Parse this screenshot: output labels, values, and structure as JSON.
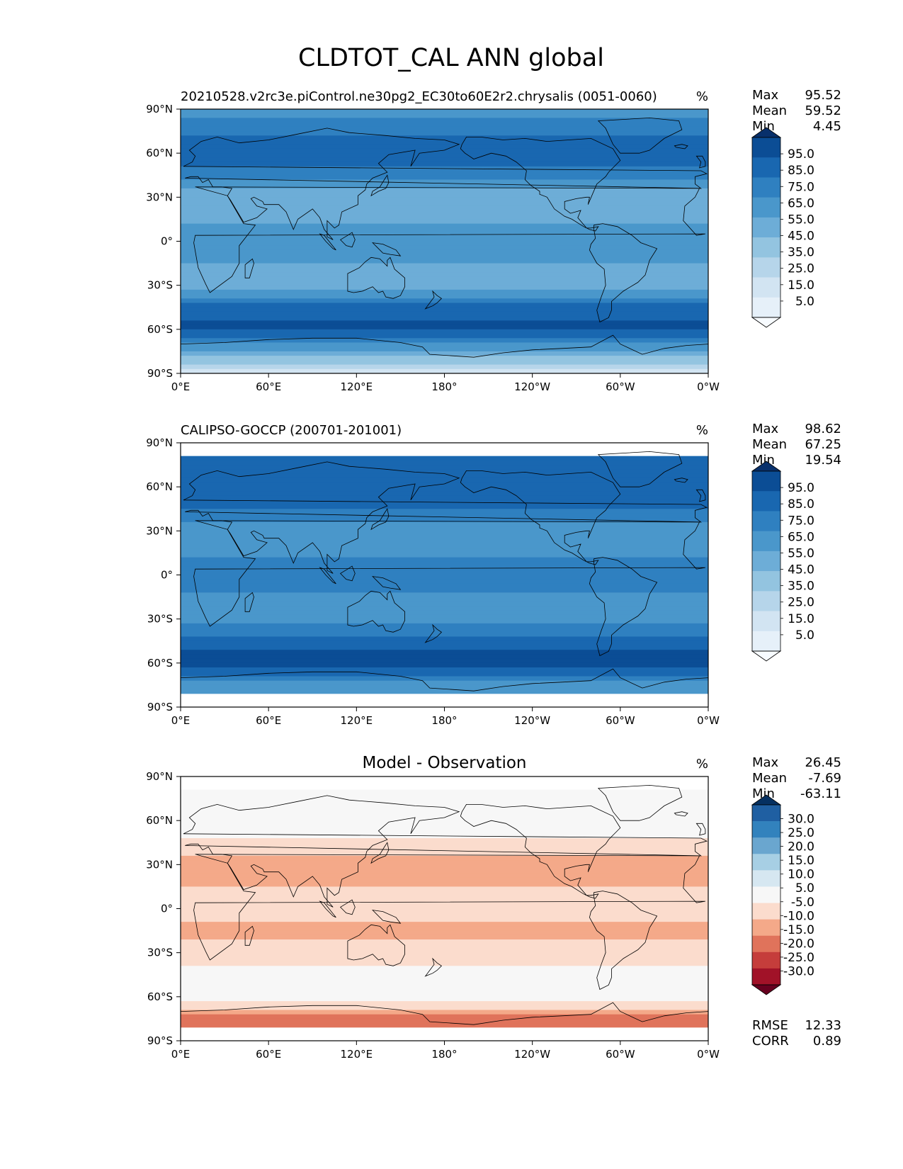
{
  "figure": {
    "title": "CLDTOT_CAL ANN global"
  },
  "x_ticks": [
    "0°E",
    "60°E",
    "120°E",
    "180°",
    "120°W",
    "60°W",
    "0°W"
  ],
  "y_ticks": [
    "90°N",
    "60°N",
    "30°N",
    "0°",
    "30°S",
    "60°S",
    "90°S"
  ],
  "panels": [
    {
      "title_left": "20210528.v2rc3e.piControl.ne30pg2_EC30to60E2r2.chrysalis (0051-0060)",
      "title_center": "",
      "units": "%",
      "stats": [
        {
          "label": "Max",
          "value": "95.52"
        },
        {
          "label": "Mean",
          "value": "59.52"
        },
        {
          "label": "Min",
          "value": "4.45"
        }
      ],
      "colorbar_labels": [
        "95.0",
        "85.0",
        "75.0",
        "65.0",
        "55.0",
        "45.0",
        "35.0",
        "25.0",
        "15.0",
        "5.0"
      ],
      "colors": [
        "#08306b",
        "#0b4d95",
        "#1967b0",
        "#2f80c0",
        "#4a97cb",
        "#6dadd7",
        "#93c4e0",
        "#b6d5ea",
        "#d2e4f2",
        "#e6f0f9",
        "#f7fbff"
      ]
    },
    {
      "title_left": "CALIPSO-GOCCP (200701-201001)",
      "title_center": "",
      "units": "%",
      "stats": [
        {
          "label": "Max",
          "value": "98.62"
        },
        {
          "label": "Mean",
          "value": "67.25"
        },
        {
          "label": "Min",
          "value": "19.54"
        }
      ],
      "colorbar_labels": [
        "95.0",
        "85.0",
        "75.0",
        "65.0",
        "55.0",
        "45.0",
        "35.0",
        "25.0",
        "15.0",
        "5.0"
      ],
      "colors": [
        "#08306b",
        "#0b4d95",
        "#1967b0",
        "#2f80c0",
        "#4a97cb",
        "#6dadd7",
        "#93c4e0",
        "#b6d5ea",
        "#d2e4f2",
        "#e6f0f9",
        "#f7fbff"
      ]
    },
    {
      "title_left": "",
      "title_center": "Model - Observation",
      "units": "%",
      "stats": [
        {
          "label": "Max",
          "value": "26.45"
        },
        {
          "label": "Mean",
          "value": "-7.69"
        },
        {
          "label": "Min",
          "value": "-63.11"
        }
      ],
      "colorbar_labels": [
        "30.0",
        "25.0",
        "20.0",
        "15.0",
        "10.0",
        "5.0",
        "-5.0",
        "-10.0",
        "-15.0",
        "-20.0",
        "-25.0",
        "-30.0"
      ],
      "colors": [
        "#053061",
        "#1f5fa2",
        "#3282bd",
        "#6aa6cf",
        "#a7cfe4",
        "#d6e7f1",
        "#f7f7f7",
        "#fbdccd",
        "#f4a989",
        "#e0735b",
        "#c53d3b",
        "#a11228",
        "#67001f"
      ],
      "footer_stats": [
        {
          "label": "RMSE",
          "value": "12.33"
        },
        {
          "label": "CORR",
          "value": "0.89"
        }
      ]
    }
  ],
  "chart_data": [
    {
      "type": "heatmap",
      "title": "20210528.v2rc3e.piControl.ne30pg2_EC30to60E2r2.chrysalis (0051-0060)",
      "units": "%",
      "xlim": [
        0,
        360
      ],
      "ylim": [
        -90,
        90
      ],
      "x_tick_values": [
        0,
        60,
        120,
        180,
        240,
        300,
        360
      ],
      "y_tick_values": [
        90,
        60,
        30,
        0,
        -30,
        -60,
        -90
      ],
      "levels": [
        5,
        15,
        25,
        35,
        45,
        55,
        65,
        75,
        85,
        95
      ],
      "stats": {
        "max": 95.52,
        "mean": 59.52,
        "min": 4.45
      },
      "zonal_profile": {
        "lat": [
          90,
          75,
          60,
          45,
          30,
          15,
          0,
          -15,
          -30,
          -45,
          -60,
          -75,
          -90
        ],
        "values": [
          58,
          72,
          82,
          70,
          48,
          52,
          65,
          55,
          50,
          78,
          88,
          55,
          20
        ]
      }
    },
    {
      "type": "heatmap",
      "title": "CALIPSO-GOCCP (200701-201001)",
      "units": "%",
      "xlim": [
        0,
        360
      ],
      "ylim": [
        -90,
        90
      ],
      "x_tick_values": [
        0,
        60,
        120,
        180,
        240,
        300,
        360
      ],
      "y_tick_values": [
        90,
        60,
        30,
        0,
        -30,
        -60,
        -90
      ],
      "levels": [
        5,
        15,
        25,
        35,
        45,
        55,
        65,
        75,
        85,
        95
      ],
      "stats": {
        "max": 98.62,
        "mean": 67.25,
        "min": 19.54
      },
      "valid_lat_range": [
        -82,
        82
      ],
      "zonal_profile": {
        "lat": [
          82,
          75,
          60,
          45,
          30,
          15,
          0,
          -15,
          -30,
          -45,
          -60,
          -75,
          -82
        ],
        "values": [
          80,
          78,
          82,
          76,
          58,
          62,
          72,
          62,
          58,
          82,
          90,
          62,
          55
        ]
      }
    },
    {
      "type": "heatmap",
      "title": "Model - Observation",
      "units": "%",
      "xlim": [
        0,
        360
      ],
      "ylim": [
        -90,
        90
      ],
      "x_tick_values": [
        0,
        60,
        120,
        180,
        240,
        300,
        360
      ],
      "y_tick_values": [
        90,
        60,
        30,
        0,
        -30,
        -60,
        -90
      ],
      "levels": [
        -30,
        -25,
        -20,
        -15,
        -10,
        -5,
        5,
        10,
        15,
        20,
        25,
        30
      ],
      "stats": {
        "max": 26.45,
        "mean": -7.69,
        "min": -63.11,
        "rmse": 12.33,
        "corr": 0.89
      },
      "valid_lat_range": [
        -82,
        82
      ],
      "zonal_profile": {
        "lat": [
          82,
          75,
          60,
          45,
          30,
          15,
          0,
          -15,
          -30,
          -45,
          -60,
          -75,
          -82
        ],
        "values": [
          6,
          2,
          0,
          -6,
          -14,
          -10,
          -7,
          -12,
          -8,
          -3,
          -2,
          -18,
          -20
        ]
      }
    }
  ]
}
